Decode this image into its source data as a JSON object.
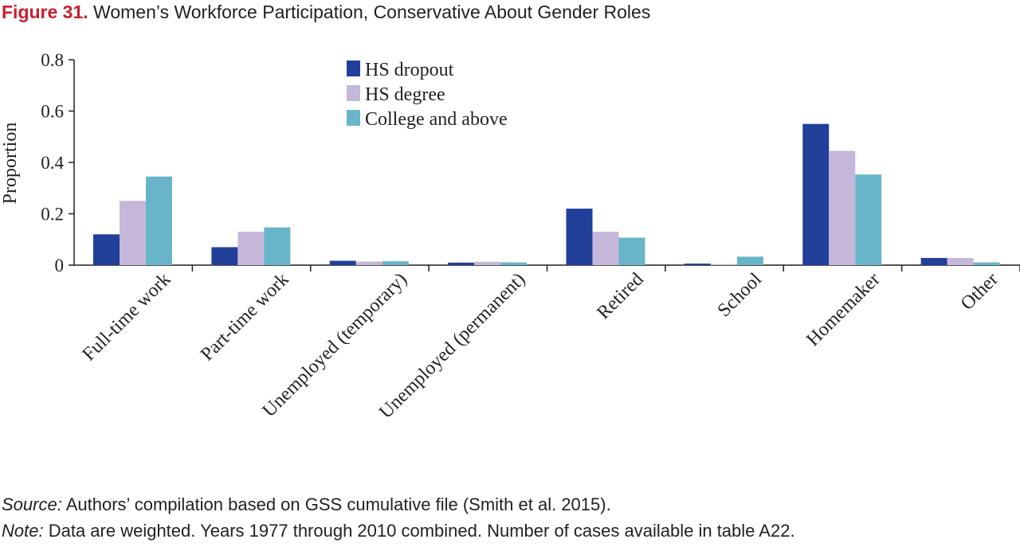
{
  "figure": {
    "label": "Figure 31.",
    "title": "Women’s Workforce Participation, Conservative About Gender Roles"
  },
  "chart_data": {
    "type": "bar",
    "categories": [
      "Full-time work",
      "Part-time work",
      "Unemployed (temporary)",
      "Unemployed (permanent)",
      "Retired",
      "School",
      "Homemaker",
      "Other"
    ],
    "series": [
      {
        "name": "HS dropout",
        "color": "#21409a",
        "values": [
          0.12,
          0.07,
          0.017,
          0.01,
          0.22,
          0.006,
          0.55,
          0.028
        ]
      },
      {
        "name": "HS degree",
        "color": "#c5b7d9",
        "values": [
          0.25,
          0.13,
          0.014,
          0.013,
          0.13,
          0.004,
          0.445,
          0.028
        ]
      },
      {
        "name": "College and above",
        "color": "#68b5c9",
        "values": [
          0.345,
          0.147,
          0.015,
          0.011,
          0.107,
          0.033,
          0.353,
          0.011
        ]
      }
    ],
    "ylabel": "Proportion",
    "xlabel": "",
    "ylim": [
      0,
      0.8
    ],
    "yticks": [
      0,
      0.2,
      0.4,
      0.6,
      0.8
    ],
    "ytick_labels": [
      "0",
      "0.2",
      "0.4",
      "0.6",
      "0.8"
    ],
    "grid": false,
    "legend_position": "top-center"
  },
  "footer": {
    "source_label": "Source:",
    "source_text": " Authors’ compilation based on GSS cumulative file (Smith et al. 2015).",
    "note_label": "Note:",
    "note_text": " Data are weighted. Years 1977 through 2010 combined. Number of cases available in table A22."
  }
}
